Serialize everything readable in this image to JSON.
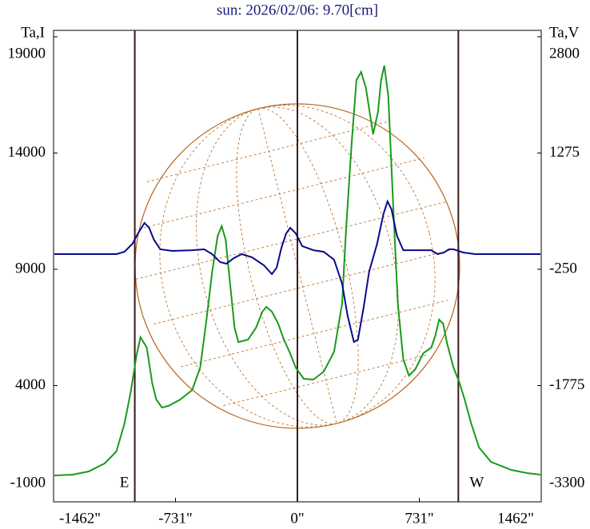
{
  "chart_data": {
    "type": "line",
    "title": "sun: 2026/02/06: 9.70[cm]",
    "y_label": "Ta,I",
    "y2_label": "Ta,V",
    "xlim": [
      -1462,
      1462
    ],
    "xticks": [
      {
        "value": -1462,
        "label": "-1462\""
      },
      {
        "value": -731,
        "label": "-731\""
      },
      {
        "value": 0,
        "label": "0\""
      },
      {
        "value": 731,
        "label": "731\""
      },
      {
        "value": 1462,
        "label": "1462\""
      }
    ],
    "ylim": [
      -1000,
      19000
    ],
    "yticks": [
      -1000,
      4000,
      9000,
      14000,
      19000
    ],
    "y2lim": [
      -3300,
      2800
    ],
    "y2ticks": [
      -3300,
      -1775,
      -250,
      1275,
      2800
    ],
    "vlines": [
      {
        "x": -975,
        "label": "E"
      },
      {
        "x": 0
      },
      {
        "x": 965,
        "label": "W"
      }
    ],
    "series": [
      {
        "color": "#1a9a1a",
        "axis": "y",
        "x": [
          -1457,
          -1347,
          -1252,
          -1156,
          -1085,
          -1037,
          -999,
          -965,
          -941,
          -903,
          -870,
          -846,
          -812,
          -774,
          -702,
          -631,
          -583,
          -545,
          -511,
          -478,
          -454,
          -430,
          -401,
          -377,
          -354,
          -296,
          -248,
          -210,
          -186,
          -153,
          -115,
          -81,
          -48,
          -10,
          38,
          96,
          158,
          220,
          268,
          291,
          325,
          354,
          382,
          411,
          454,
          483,
          502,
          521,
          545,
          573,
          602,
          635,
          669,
          707,
          755,
          803,
          827,
          850,
          874,
          898,
          936,
          970,
          1003,
          1042,
          1089,
          1161,
          1281,
          1376,
          1457
        ],
        "values": [
          134,
          168,
          306,
          649,
          1165,
          2367,
          3742,
          5288,
          6078,
          5631,
          4085,
          3398,
          3054,
          3123,
          3398,
          3810,
          4772,
          6834,
          8895,
          10441,
          10854,
          10270,
          8208,
          6490,
          5871,
          5975,
          6490,
          7177,
          7384,
          7177,
          6662,
          5975,
          5459,
          4772,
          4291,
          4257,
          4600,
          5459,
          7521,
          10613,
          14393,
          17142,
          17485,
          16798,
          14805,
          15767,
          17142,
          17760,
          16455,
          11988,
          7521,
          5116,
          4429,
          4704,
          5391,
          5631,
          6147,
          6834,
          6662,
          5803,
          4772,
          4154,
          3398,
          2367,
          1337,
          718,
          374,
          237,
          168
        ]
      },
      {
        "color": "#0a0a8a",
        "axis": "y2",
        "x": [
          -1457,
          -1085,
          -1037,
          -989,
          -956,
          -917,
          -889,
          -860,
          -822,
          -750,
          -631,
          -559,
          -511,
          -463,
          -425,
          -382,
          -334,
          -272,
          -201,
          -153,
          -124,
          -96,
          -67,
          -43,
          -10,
          29,
          96,
          158,
          220,
          268,
          301,
          339,
          363,
          397,
          430,
          478,
          516,
          540,
          564,
          597,
          635,
          707,
          803,
          841,
          879,
          908,
          936,
          994,
          1066,
          1457
        ],
        "values": [
          -51,
          -51,
          -20,
          85,
          221,
          358,
          295,
          137,
          12,
          -9,
          1,
          12,
          -51,
          -156,
          -177,
          -104,
          -51,
          -93,
          -198,
          -313,
          -229,
          33,
          221,
          295,
          221,
          54,
          1,
          -20,
          -125,
          -439,
          -858,
          -1204,
          -1173,
          -754,
          -282,
          85,
          473,
          641,
          536,
          190,
          1,
          1,
          1,
          -51,
          -30,
          12,
          12,
          -30,
          -51,
          -51
        ]
      }
    ]
  }
}
